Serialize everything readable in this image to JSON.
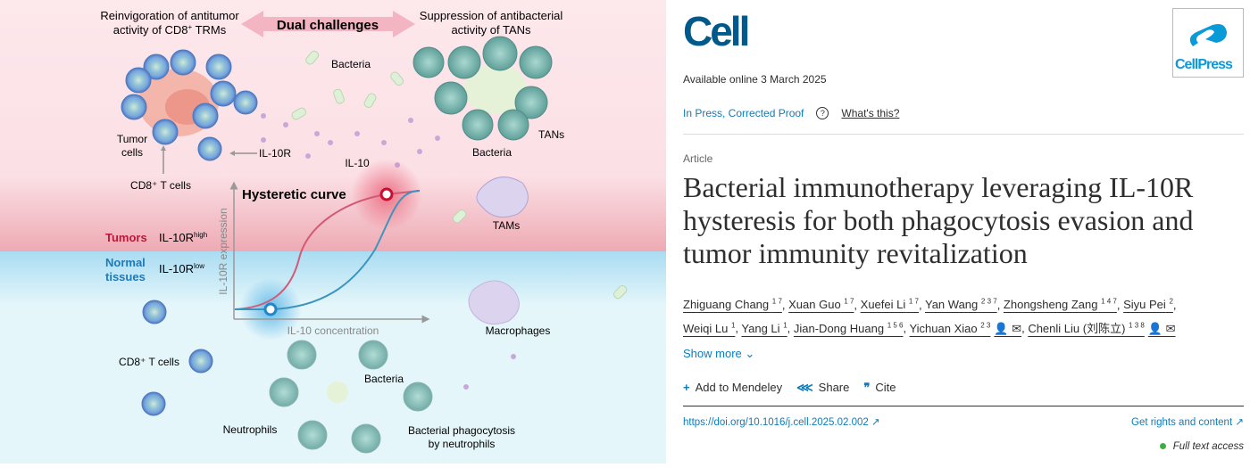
{
  "figure": {
    "left_heading": [
      "Reinvigoration of antitumor",
      "activity of CD8",
      "+",
      " TRMs"
    ],
    "center_heading": "Dual challenges",
    "right_heading": [
      "Suppression of antibacterial",
      "activity of TANs"
    ],
    "labels": {
      "bacteria_top": "Bacteria",
      "tumor_cells": [
        "Tumor",
        "cells"
      ],
      "il10r": "IL-10R",
      "il10": "IL-10",
      "bacteria_right": "Bacteria",
      "tans": "TANs",
      "cd8_top": "CD8⁺ T cells",
      "tams": "TAMs",
      "macrophages": "Macrophages",
      "cd8_bottom": "CD8⁺ T cells",
      "bacteria_bottom": "Bacteria",
      "neutrophils": "Neutrophils",
      "phagocytosis": [
        "Bacterial phagocytosis",
        "by neutrophils"
      ]
    },
    "regions": {
      "tumors": "Tumors",
      "tumors_expr": "IL-10R",
      "tumors_expr_sup": "high",
      "normal": [
        "Normal",
        "tissues"
      ],
      "normal_expr": "IL-10R",
      "normal_expr_sup": "low"
    },
    "plot": {
      "title": "Hysteretic curve",
      "ylabel": "IL-10R expression",
      "xlabel": "IL-10 concentration"
    },
    "colors": {
      "tumor": "#c8102e",
      "normal": "#1e7ab8",
      "pink_bg": "#fde8ec",
      "blue_bg": "#e4f6fa"
    }
  },
  "article": {
    "journal": "Cell",
    "publisher_logo": "CellPress",
    "available": "Available online 3 March 2025",
    "status": "In Press, Corrected Proof",
    "help_icon": "question-circle-icon",
    "whats_this": "What's this?",
    "type": "Article",
    "title": "Bacterial immunotherapy leveraging IL-10R hysteresis for both phagocytosis evasion and tumor immunity revitalization",
    "authors": [
      {
        "name": "Zhiguang Chang",
        "aff": "1 7"
      },
      {
        "name": "Xuan Guo",
        "aff": "1 7"
      },
      {
        "name": "Xuefei Li",
        "aff": "1 7"
      },
      {
        "name": "Yan Wang",
        "aff": "2 3 7"
      },
      {
        "name": "Zhongsheng Zang",
        "aff": "1 4 7"
      },
      {
        "name": "Siyu Pei",
        "aff": "2"
      },
      {
        "name": "Weiqi Lu",
        "aff": "1"
      },
      {
        "name": "Yang Li",
        "aff": "1"
      },
      {
        "name": "Jian-Dong Huang",
        "aff": "1 5 6"
      },
      {
        "name": "Yichuan Xiao",
        "aff": "2 3",
        "icons": "👤 ✉"
      },
      {
        "name": "Chenli Liu (刘陈立)",
        "aff": "1 3 8",
        "icons": "👤 ✉"
      }
    ],
    "show_more": "Show more",
    "actions": {
      "mendeley": "Add to Mendeley",
      "share": "Share",
      "cite": "Cite"
    },
    "doi": "https://doi.org/10.1016/j.cell.2025.02.002",
    "rights": "Get rights and content",
    "access": "Full text access",
    "colors": {
      "link": "#0c7dbb",
      "cell_blue": "#00598c",
      "access_green": "#3fae3f"
    }
  }
}
